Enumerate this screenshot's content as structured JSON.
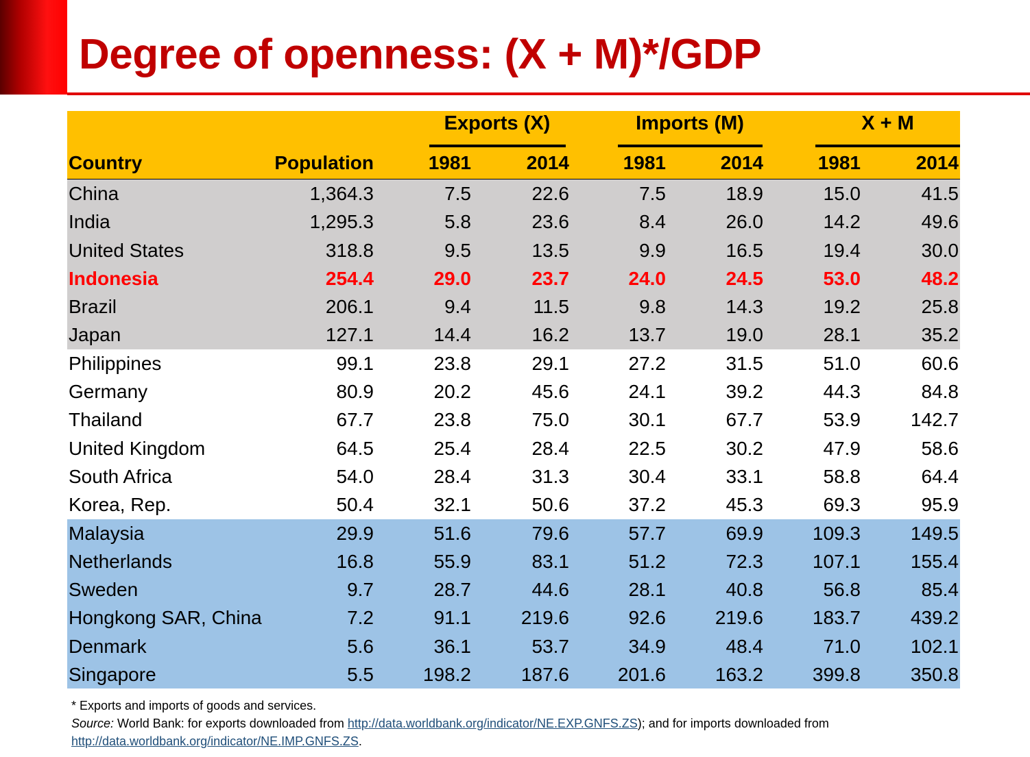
{
  "title": "Degree of openness: (X + M)*/GDP",
  "header": {
    "groups": [
      "Exports (X)",
      "Imports (M)",
      "X + M"
    ],
    "columns": [
      "Country",
      "Population",
      "1981",
      "2014",
      "1981",
      "2014",
      "1981",
      "2014"
    ]
  },
  "rows": [
    {
      "band": "gray",
      "highlight": false,
      "cells": [
        "China",
        "1,364.3",
        "7.5",
        "22.6",
        "7.5",
        "18.9",
        "15.0",
        "41.5"
      ]
    },
    {
      "band": "gray",
      "highlight": false,
      "cells": [
        "India",
        "1,295.3",
        "5.8",
        "23.6",
        "8.4",
        "26.0",
        "14.2",
        "49.6"
      ]
    },
    {
      "band": "gray",
      "highlight": false,
      "cells": [
        "United States",
        "318.8",
        "9.5",
        "13.5",
        "9.9",
        "16.5",
        "19.4",
        "30.0"
      ]
    },
    {
      "band": "gray",
      "highlight": true,
      "cells": [
        "Indonesia",
        "254.4",
        "29.0",
        "23.7",
        "24.0",
        "24.5",
        "53.0",
        "48.2"
      ]
    },
    {
      "band": "gray",
      "highlight": false,
      "cells": [
        "Brazil",
        "206.1",
        "9.4",
        "11.5",
        "9.8",
        "14.3",
        "19.2",
        "25.8"
      ]
    },
    {
      "band": "gray",
      "highlight": false,
      "cells": [
        "Japan",
        "127.1",
        "14.4",
        "16.2",
        "13.7",
        "19.0",
        "28.1",
        "35.2"
      ]
    },
    {
      "band": "white",
      "highlight": false,
      "cells": [
        "Philippines",
        "99.1",
        "23.8",
        "29.1",
        "27.2",
        "31.5",
        "51.0",
        "60.6"
      ]
    },
    {
      "band": "white",
      "highlight": false,
      "cells": [
        "Germany",
        "80.9",
        "20.2",
        "45.6",
        "24.1",
        "39.2",
        "44.3",
        "84.8"
      ]
    },
    {
      "band": "white",
      "highlight": false,
      "cells": [
        "Thailand",
        "67.7",
        "23.8",
        "75.0",
        "30.1",
        "67.7",
        "53.9",
        "142.7"
      ]
    },
    {
      "band": "white",
      "highlight": false,
      "cells": [
        "United Kingdom",
        "64.5",
        "25.4",
        "28.4",
        "22.5",
        "30.2",
        "47.9",
        "58.6"
      ]
    },
    {
      "band": "white",
      "highlight": false,
      "cells": [
        "South Africa",
        "54.0",
        "28.4",
        "31.3",
        "30.4",
        "33.1",
        "58.8",
        "64.4"
      ]
    },
    {
      "band": "white",
      "highlight": false,
      "cells": [
        "Korea, Rep.",
        "50.4",
        "32.1",
        "50.6",
        "37.2",
        "45.3",
        "69.3",
        "95.9"
      ]
    },
    {
      "band": "blue",
      "highlight": false,
      "cells": [
        "Malaysia",
        "29.9",
        "51.6",
        "79.6",
        "57.7",
        "69.9",
        "109.3",
        "149.5"
      ]
    },
    {
      "band": "blue",
      "highlight": false,
      "cells": [
        "Netherlands",
        "16.8",
        "55.9",
        "83.1",
        "51.2",
        "72.3",
        "107.1",
        "155.4"
      ]
    },
    {
      "band": "blue",
      "highlight": false,
      "cells": [
        "Sweden",
        "9.7",
        "28.7",
        "44.6",
        "28.1",
        "40.8",
        "56.8",
        "85.4"
      ]
    },
    {
      "band": "blue",
      "highlight": false,
      "cells": [
        "Hongkong SAR, China",
        "7.2",
        "91.1",
        "219.6",
        "92.6",
        "219.6",
        "183.7",
        "439.2"
      ]
    },
    {
      "band": "blue",
      "highlight": false,
      "cells": [
        "Denmark",
        "5.6",
        "36.1",
        "53.7",
        "34.9",
        "48.4",
        "71.0",
        "102.1"
      ]
    },
    {
      "band": "blue",
      "highlight": false,
      "cells": [
        "Singapore",
        "5.5",
        "198.2",
        "187.6",
        "201.6",
        "163.2",
        "399.8",
        "350.8"
      ]
    }
  ],
  "notes": {
    "footnote": "* Exports and imports of goods and services.",
    "source_label": "Source:",
    "source_text_1": " World Bank: for exports downloaded from ",
    "link_exports": "http://data.worldbank.org/indicator/NE.EXP.GNFS.ZS",
    "source_text_2": "); and for imports downloaded from",
    "link_imports": "http://data.worldbank.org/indicator/NE.IMP.GNFS.ZS",
    "source_text_3": "."
  },
  "colors": {
    "title": "#c00000",
    "header_bg": "#ffc000",
    "gray_band": "#d0cece",
    "blue_band": "#9dc3e6",
    "highlight": "#ff0000",
    "link": "#1f4e79"
  }
}
